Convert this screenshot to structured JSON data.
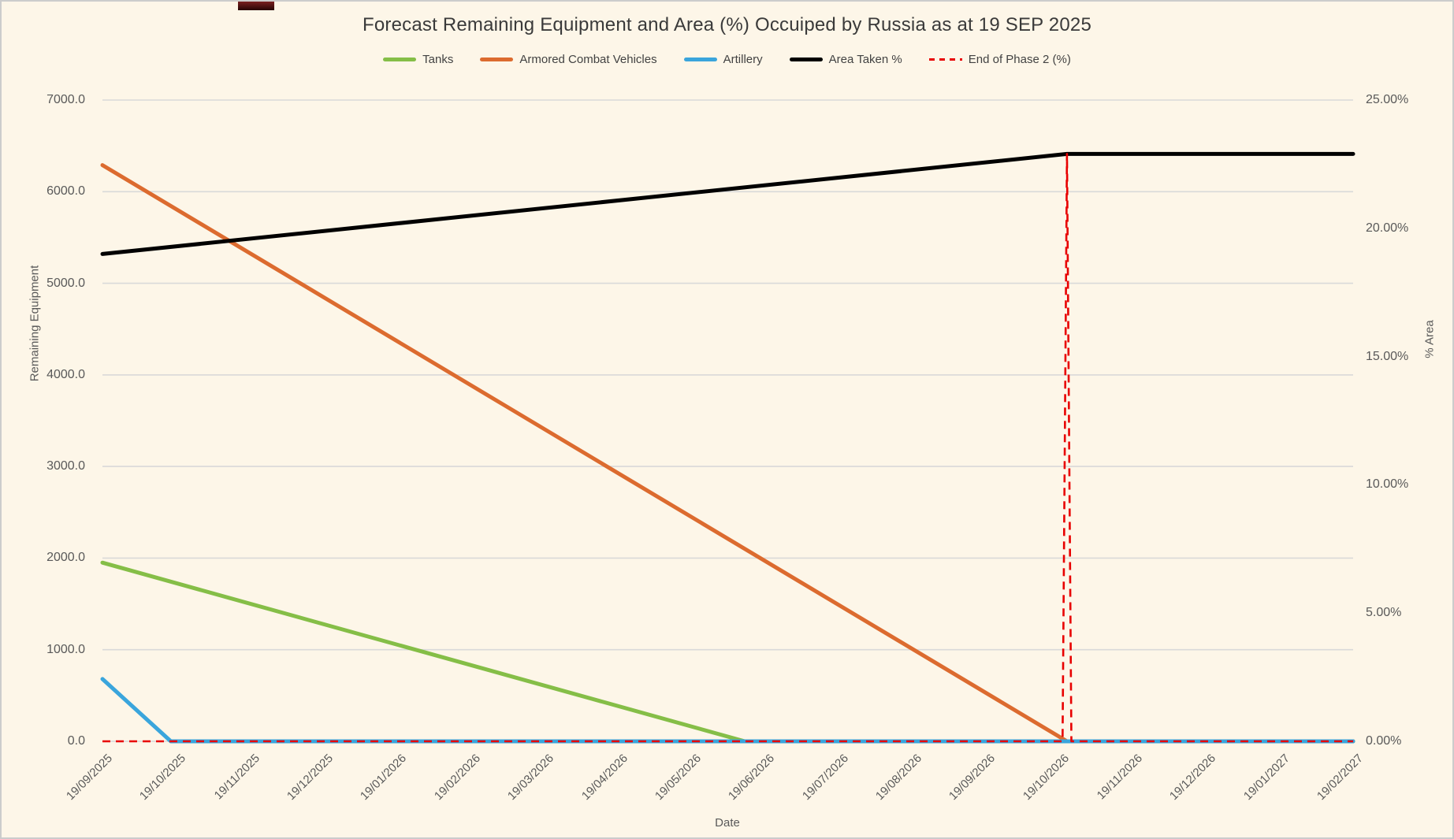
{
  "title": "Forecast Remaining Equipment and Area (%) Occuiped by Russia as at 19 SEP 2025",
  "colors": {
    "background": "#fdf6e8",
    "grid": "#d9d9d9",
    "title_text": "#3a3a3a",
    "axis_text": "#595959",
    "tanks": "#85be47",
    "acv": "#dc6b2f",
    "artillery": "#3aa5dc",
    "area": "#000000",
    "phase2": "#e80000"
  },
  "legend": [
    {
      "label": "Tanks",
      "color_key": "tanks",
      "dashed": false
    },
    {
      "label": "Armored Combat Vehicles",
      "color_key": "acv",
      "dashed": false
    },
    {
      "label": "Artillery",
      "color_key": "artillery",
      "dashed": false
    },
    {
      "label": "Area Taken %",
      "color_key": "area",
      "dashed": false
    },
    {
      "label": "End of Phase 2 (%)",
      "color_key": "phase2",
      "dashed": true
    }
  ],
  "chart_data": {
    "type": "line",
    "title": "Forecast Remaining Equipment and Area (%) Occuiped by Russia as at 19 SEP 2025",
    "grid": "horizontal",
    "legend_position": "top",
    "x_axis": {
      "title": "Date",
      "tick_labels": [
        "19/09/2025",
        "19/10/2025",
        "19/11/2025",
        "19/12/2025",
        "19/01/2026",
        "19/02/2026",
        "19/03/2026",
        "19/04/2026",
        "19/05/2026",
        "19/06/2026",
        "19/07/2026",
        "19/08/2026",
        "19/09/2026",
        "19/10/2026",
        "19/11/2026",
        "19/12/2026",
        "19/01/2027",
        "19/02/2027"
      ],
      "label_rotation_deg": -45,
      "x_unit": "month index, 0 = 19/09/2025 … 17 = 19/02/2027"
    },
    "y_left": {
      "title": "Remaining Equipment",
      "min": 0,
      "max": 7000,
      "tick_labels": [
        "7000.0",
        "6000.0",
        "5000.0",
        "4000.0",
        "3000.0",
        "2000.0",
        "1000.0",
        "0.0"
      ]
    },
    "y_right": {
      "title": "% Area",
      "min": 0,
      "max": 25,
      "tick_labels": [
        "25.00%",
        "20.00%",
        "15.00%",
        "10.00%",
        "5.00%",
        "0.00%"
      ]
    },
    "series": [
      {
        "name": "Tanks",
        "axis": "left",
        "color_key": "tanks",
        "dashed": false,
        "points": [
          [
            0,
            1950
          ],
          [
            8.73,
            0
          ],
          [
            17,
            0
          ]
        ],
        "description": "Linear decline from ~1950 on 19/09/2025 to 0 around early June 2026, then flat at 0"
      },
      {
        "name": "Armored Combat Vehicles",
        "axis": "left",
        "color_key": "acv",
        "dashed": false,
        "points": [
          [
            0,
            6290
          ],
          [
            13.11,
            0
          ],
          [
            17,
            0
          ]
        ],
        "description": "Linear decline from ~6290 on 19/09/2025 to 0 around late Oct 2026, then flat at 0"
      },
      {
        "name": "Artillery",
        "axis": "left",
        "color_key": "artillery",
        "dashed": false,
        "points": [
          [
            0,
            680
          ],
          [
            0.93,
            0
          ],
          [
            17,
            0
          ]
        ],
        "description": "Linear decline from ~680 on 19/09/2025 to 0 around mid Oct 2025, then flat at 0"
      },
      {
        "name": "Area Taken %",
        "axis": "right",
        "color_key": "area",
        "dashed": false,
        "points": [
          [
            0,
            19.0
          ],
          [
            13.11,
            22.9
          ],
          [
            17,
            22.9
          ]
        ],
        "description": "Rises linearly from ~19.0% on 19/09/2025 to ~22.9% around late Oct 2026, then flat"
      },
      {
        "name": "End of Phase 2 (%)",
        "axis": "right",
        "color_key": "phase2",
        "dashed": true,
        "points": [
          [
            0,
            0
          ],
          [
            13.05,
            0
          ],
          [
            13.11,
            22.9
          ],
          [
            13.17,
            0
          ],
          [
            17,
            0
          ]
        ],
        "description": "Red dashed marker series: 0% everywhere with a vertical spike to ~22.9% around late Oct 2026 (end of phase 2)"
      }
    ]
  }
}
